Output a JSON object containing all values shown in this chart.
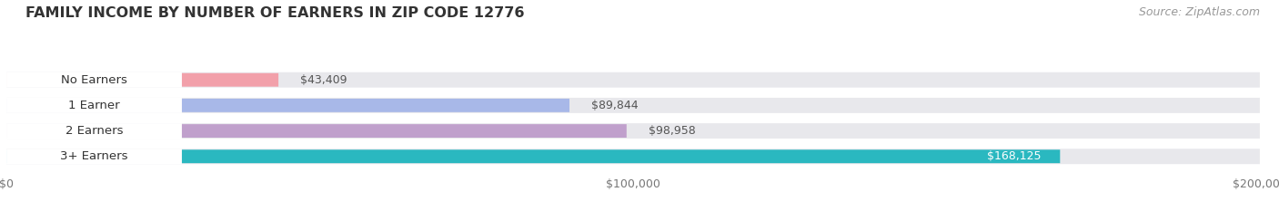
{
  "title": "FAMILY INCOME BY NUMBER OF EARNERS IN ZIP CODE 12776",
  "source": "Source: ZipAtlas.com",
  "categories": [
    "No Earners",
    "1 Earner",
    "2 Earners",
    "3+ Earners"
  ],
  "values": [
    43409,
    89844,
    98958,
    168125
  ],
  "bar_colors": [
    "#f2a0aa",
    "#a8b8e8",
    "#c0a0cc",
    "#2ab8c0"
  ],
  "label_colors": [
    "#444444",
    "#444444",
    "#444444",
    "#ffffff"
  ],
  "xlim": [
    0,
    200000
  ],
  "xticks": [
    0,
    100000,
    200000
  ],
  "xtick_labels": [
    "$0",
    "$100,000",
    "$200,000"
  ],
  "background_color": "#ffffff",
  "bar_bg_color": "#e8e8ec",
  "title_fontsize": 11.5,
  "source_fontsize": 9,
  "label_fontsize": 9.5,
  "value_fontsize": 9,
  "tick_fontsize": 9
}
